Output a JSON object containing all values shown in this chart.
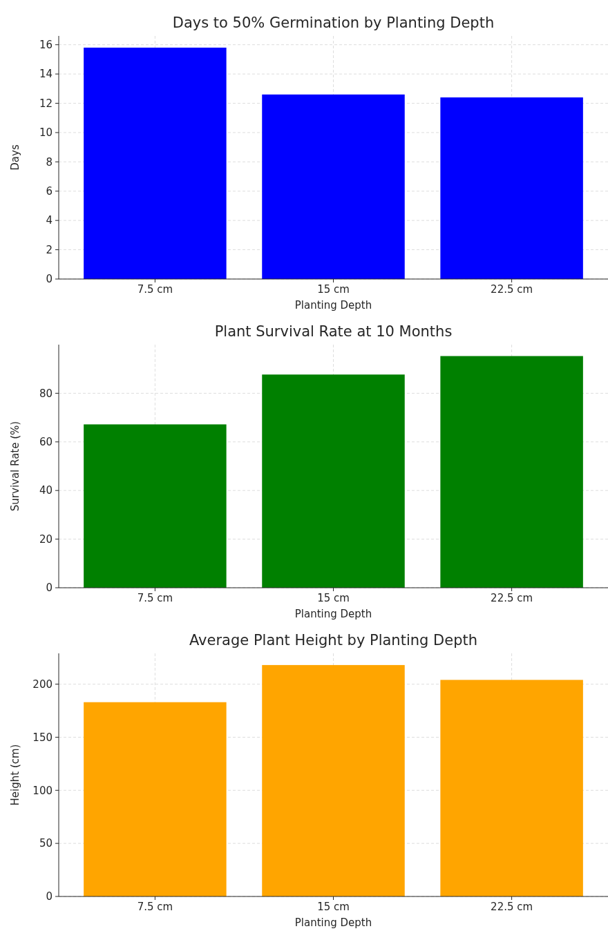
{
  "chart_data": [
    {
      "type": "bar",
      "title": "Days to 50% Germination by Planting Depth",
      "xlabel": "Planting Depth",
      "ylabel": "Days",
      "categories": [
        "7.5 cm",
        "15 cm",
        "22.5 cm"
      ],
      "values": [
        15.8,
        12.6,
        12.4
      ],
      "color": "#0000ff",
      "ylim": [
        0,
        16.6
      ],
      "yticks": [
        0,
        2,
        4,
        6,
        8,
        10,
        12,
        14,
        16
      ],
      "grid": true
    },
    {
      "type": "bar",
      "title": "Plant Survival Rate at 10 Months",
      "xlabel": "Planting Depth",
      "ylabel": "Survival Rate (%)",
      "categories": [
        "7.5 cm",
        "15 cm",
        "22.5 cm"
      ],
      "values": [
        67.2,
        87.7,
        95.3
      ],
      "color": "#008000",
      "ylim": [
        0,
        100
      ],
      "yticks": [
        0,
        20,
        40,
        60,
        80
      ],
      "grid": true
    },
    {
      "type": "bar",
      "title": "Average Plant Height by Planting Depth",
      "xlabel": "Planting Depth",
      "ylabel": "Height (cm)",
      "categories": [
        "7.5 cm",
        "15 cm",
        "22.5 cm"
      ],
      "values": [
        183,
        218,
        204
      ],
      "color": "#ffa500",
      "ylim": [
        0,
        229
      ],
      "yticks": [
        0,
        50,
        100,
        150,
        200
      ],
      "grid": true
    }
  ]
}
